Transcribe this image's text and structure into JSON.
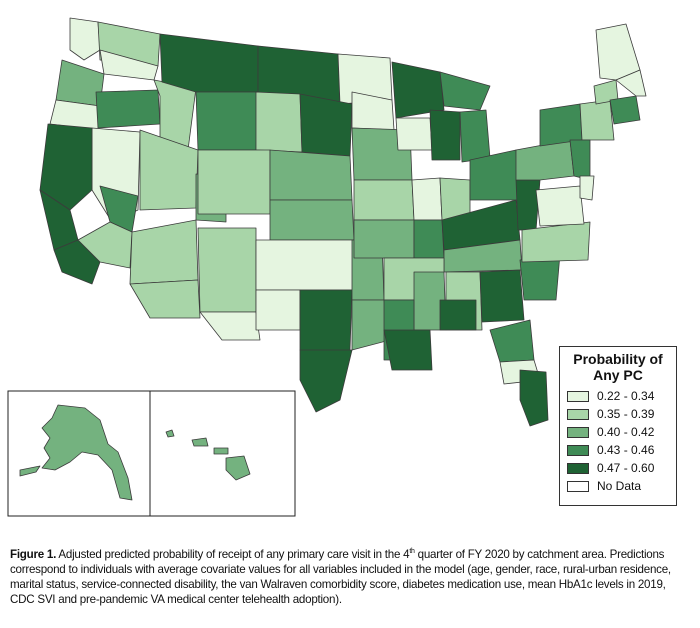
{
  "legend": {
    "title_line1": "Probability of",
    "title_line2": "Any PC",
    "items": [
      {
        "label": "0.22 - 0.34",
        "color": "#e5f5e0"
      },
      {
        "label": "0.35 - 0.39",
        "color": "#a8d5a8"
      },
      {
        "label": "0.40 - 0.42",
        "color": "#74b27f"
      },
      {
        "label": "0.43 - 0.46",
        "color": "#3f8b56"
      },
      {
        "label": "0.47 - 0.60",
        "color": "#1f6234"
      },
      {
        "label": "No Data",
        "color": "#ffffff"
      }
    ]
  },
  "caption": {
    "label": "Figure 1.",
    "text_a": " Adjusted predicted probability of receipt of any primary care visit in the 4",
    "sup": "th",
    "text_b": " quarter of FY 2020 by catchment area. Predictions correspond to individuals with average covariate values for all variables included in the model (age, gender, race, rural-urban residence, marital status, service-connected disability, the van Walraven comorbidity score, diabetes medication use, mean HbA1c levels in 2019, CDC SVI and pre-pandemic VA medical center telehealth adoption)."
  }
}
